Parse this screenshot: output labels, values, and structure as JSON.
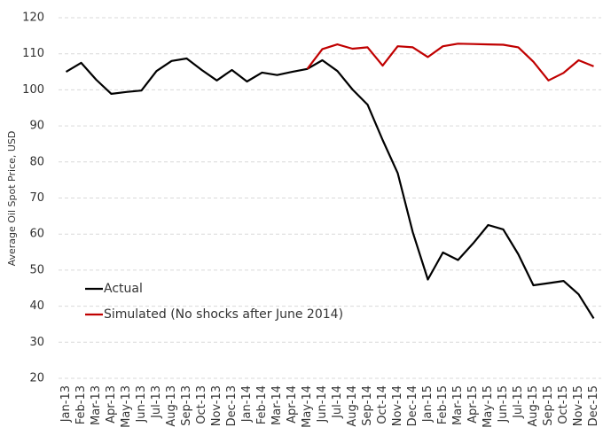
{
  "chart_data": {
    "type": "line",
    "y_label": "Average Oil Spot Price, USD",
    "categories": [
      "Jan-13",
      "Feb-13",
      "Mar-13",
      "Apr-13",
      "May-13",
      "Jun-13",
      "Jul-13",
      "Aug-13",
      "Sep-13",
      "Oct-13",
      "Nov-13",
      "Dec-13",
      "Jan-14",
      "Feb-14",
      "Mar-14",
      "Apr-14",
      "May-14",
      "Jun-14",
      "Jul-14",
      "Aug-14",
      "Sep-14",
      "Oct-14",
      "Nov-14",
      "Dec-14",
      "Jan-15",
      "Feb-15",
      "Mar-15",
      "Apr-15",
      "May-15",
      "Jun-15",
      "Jul-15",
      "Aug-15",
      "Sep-15",
      "Oct-15",
      "Nov-15",
      "Dec-15"
    ],
    "series": [
      {
        "name": "Actual",
        "color": "#000000",
        "values": [
          105,
          107.5,
          102.8,
          98.9,
          99.4,
          99.8,
          105.2,
          108,
          108.7,
          105.5,
          102.6,
          105.5,
          102.3,
          104.8,
          104.1,
          105,
          105.8,
          108.2,
          105.2,
          100.1,
          95.9,
          86.1,
          76.9,
          60.5,
          47.4,
          54.9,
          52.8,
          57.4,
          62.5,
          61.3,
          54.4,
          45.8,
          46.4,
          47,
          43.3,
          36.6
        ]
      },
      {
        "name": "Simulated (No shocks after June 2014)",
        "color": "#c00000",
        "values": [
          null,
          null,
          null,
          null,
          null,
          null,
          null,
          null,
          null,
          null,
          null,
          null,
          null,
          null,
          null,
          null,
          105.8,
          111.3,
          112.6,
          111.4,
          111.8,
          106.7,
          112.1,
          111.8,
          109.1,
          112.1,
          112.8,
          112.7,
          112.6,
          112.5,
          111.8,
          107.8,
          102.6,
          104.7,
          108.2,
          106.5
        ]
      }
    ],
    "ylim": [
      20,
      120
    ],
    "yticks": [
      20,
      30,
      40,
      50,
      60,
      70,
      80,
      90,
      100,
      110,
      120
    ],
    "grid": true,
    "legend": "lower left"
  }
}
